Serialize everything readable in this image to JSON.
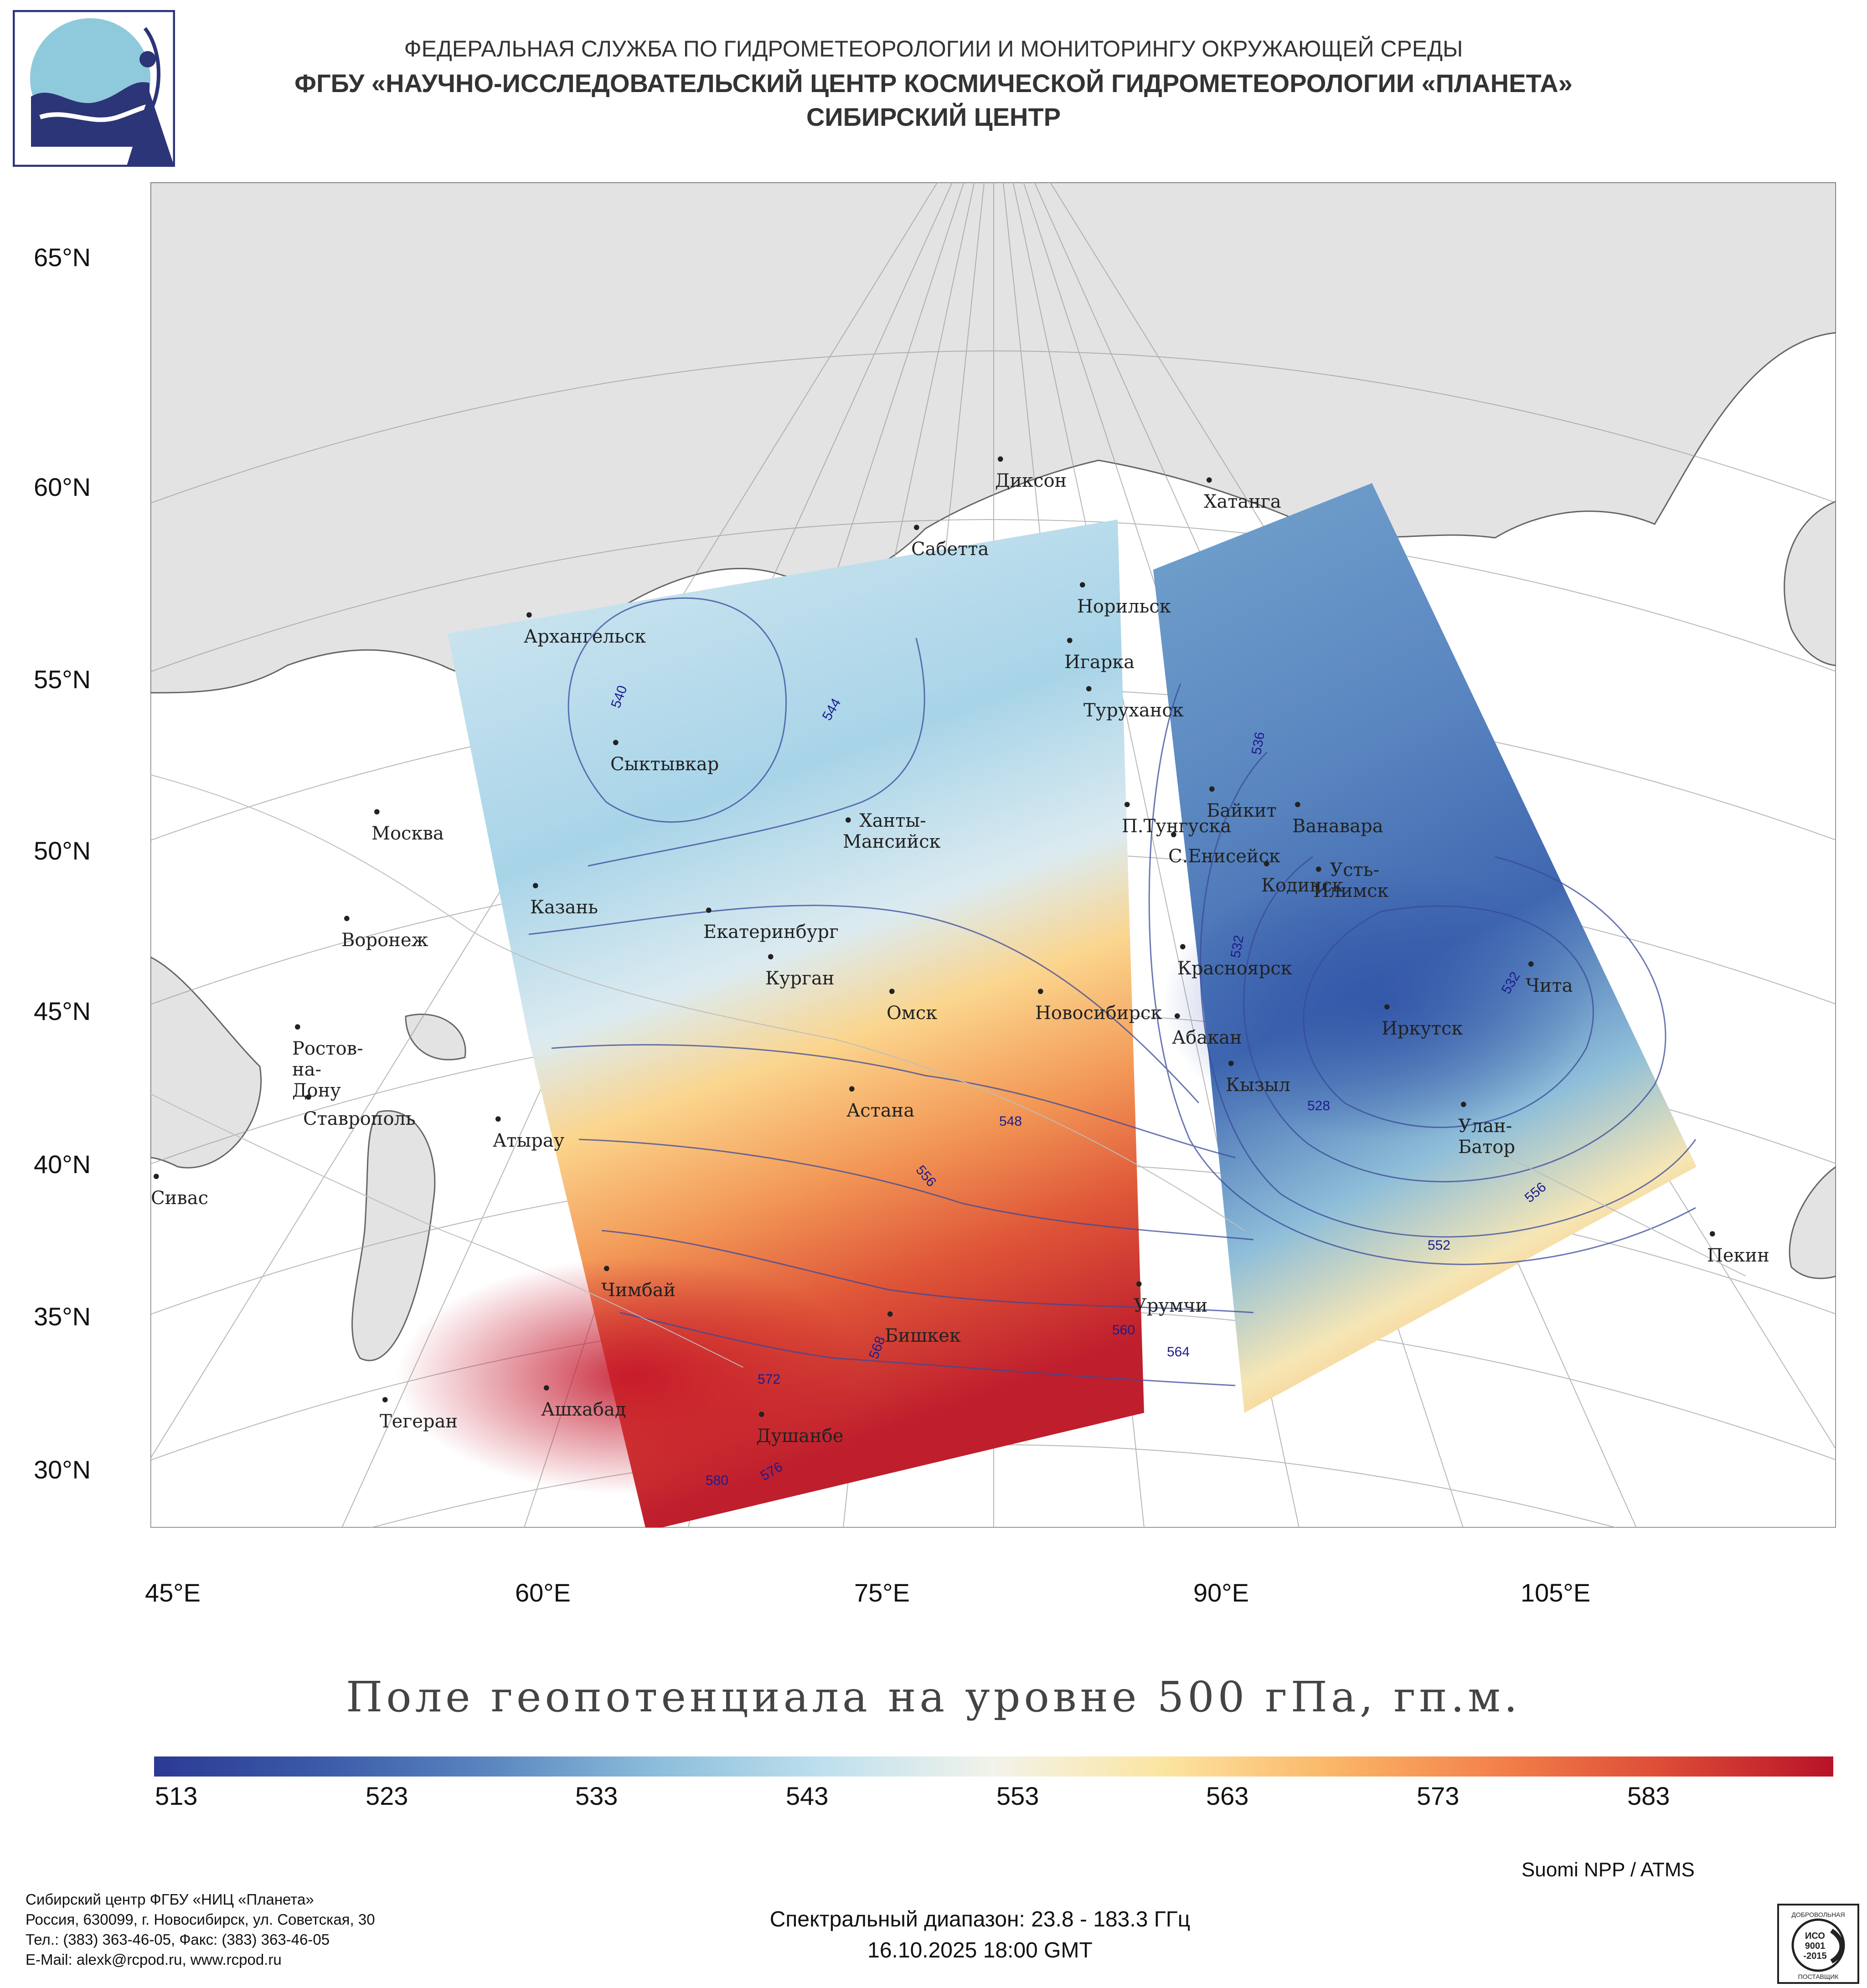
{
  "header": {
    "line1": "ФЕДЕРАЛЬНАЯ СЛУЖБА ПО ГИДРОМЕТЕОРОЛОГИИ И МОНИТОРИНГУ ОКРУЖАЮЩЕЙ СРЕДЫ",
    "line2": "ФГБУ «НАУЧНО-ИССЛЕДОВАТЕЛЬСКИЙ ЦЕНТР КОСМИЧЕСКОЙ ГИДРОМЕТЕОРОЛОГИИ «ПЛАНЕТА»",
    "line3": "СИБИРСКИЙ ЦЕНТР"
  },
  "map": {
    "lat_labels": [
      "65°N",
      "60°N",
      "55°N",
      "50°N",
      "45°N",
      "40°N",
      "35°N",
      "30°N"
    ],
    "lon_labels": [
      "45°E",
      "60°E",
      "75°E",
      "90°E",
      "105°E"
    ],
    "cities": [
      {
        "name": "Диксон"
      },
      {
        "name": "Хатанга"
      },
      {
        "name": "Сабетта"
      },
      {
        "name": "Норильск"
      },
      {
        "name": "Архангельск"
      },
      {
        "name": "Игарка"
      },
      {
        "name": "Туруханск"
      },
      {
        "name": "Сыктывкар"
      },
      {
        "name": "Байкит"
      },
      {
        "name": "П.Тунгуска"
      },
      {
        "name": "Ванавара"
      },
      {
        "name": "Москва"
      },
      {
        "name": "Ханты-Мансийск"
      },
      {
        "name": "С.Енисейск"
      },
      {
        "name": "Кодинск"
      },
      {
        "name": "Усть-Илимск"
      },
      {
        "name": "Казань"
      },
      {
        "name": "Екатеринбург"
      },
      {
        "name": "Воронеж"
      },
      {
        "name": "Красноярск"
      },
      {
        "name": "Курган"
      },
      {
        "name": "Чита"
      },
      {
        "name": "Омск"
      },
      {
        "name": "Новосибирск"
      },
      {
        "name": "Иркутск"
      },
      {
        "name": "Абакан"
      },
      {
        "name": "Ростов-на-Дону"
      },
      {
        "name": "Кызыл"
      },
      {
        "name": "Ставрополь"
      },
      {
        "name": "Астана"
      },
      {
        "name": "Улан-Батор"
      },
      {
        "name": "Атырау"
      },
      {
        "name": "Сивас"
      },
      {
        "name": "Пекин"
      },
      {
        "name": "Чимбай"
      },
      {
        "name": "Урумчи"
      },
      {
        "name": "Бишкек"
      },
      {
        "name": "Ашхабад"
      },
      {
        "name": "Тегеран"
      },
      {
        "name": "Душанбе"
      }
    ],
    "contour_labels": [
      "540",
      "544",
      "536",
      "532",
      "548",
      "552",
      "556",
      "528",
      "560",
      "564",
      "568",
      "572",
      "576",
      "580"
    ]
  },
  "title": "Поле геопотенциала на уровне 500 гПа, гп.м.",
  "colorbar": {
    "labels": [
      "513",
      "523",
      "533",
      "543",
      "553",
      "563",
      "573",
      "583"
    ],
    "colors": [
      "#2b3a94",
      "#3b5aa8",
      "#5a86c0",
      "#8cbedb",
      "#bfe0ee",
      "#f2f3ea",
      "#fce5a2",
      "#fbb768",
      "#f3814a",
      "#dc4b36",
      "#b81328"
    ]
  },
  "satellite": "Suomi NPP / ATMS",
  "footer_left": {
    "line1": "Сибирский центр ФГБУ «НИЦ «Планета»",
    "line2": "Россия, 630099, г. Новосибирск, ул. Советская, 30",
    "line3": "Тел.: (383) 363-46-05, Факс: (383) 363-46-05",
    "line4": "E-Mail: alexk@rcpod.ru, www.rcpod.ru"
  },
  "footer_center": {
    "spectral": "Спектральный диапазон: 23.8 - 183.3 ГГц",
    "datetime": "16.10.2025 18:00 GMT"
  },
  "iso_badge": {
    "top": "ДОБРОВОЛЬНАЯ",
    "line1": "ИСО",
    "line2": "9001",
    "line3": "-2015",
    "bottom": "ПОСТАВЩИК"
  }
}
